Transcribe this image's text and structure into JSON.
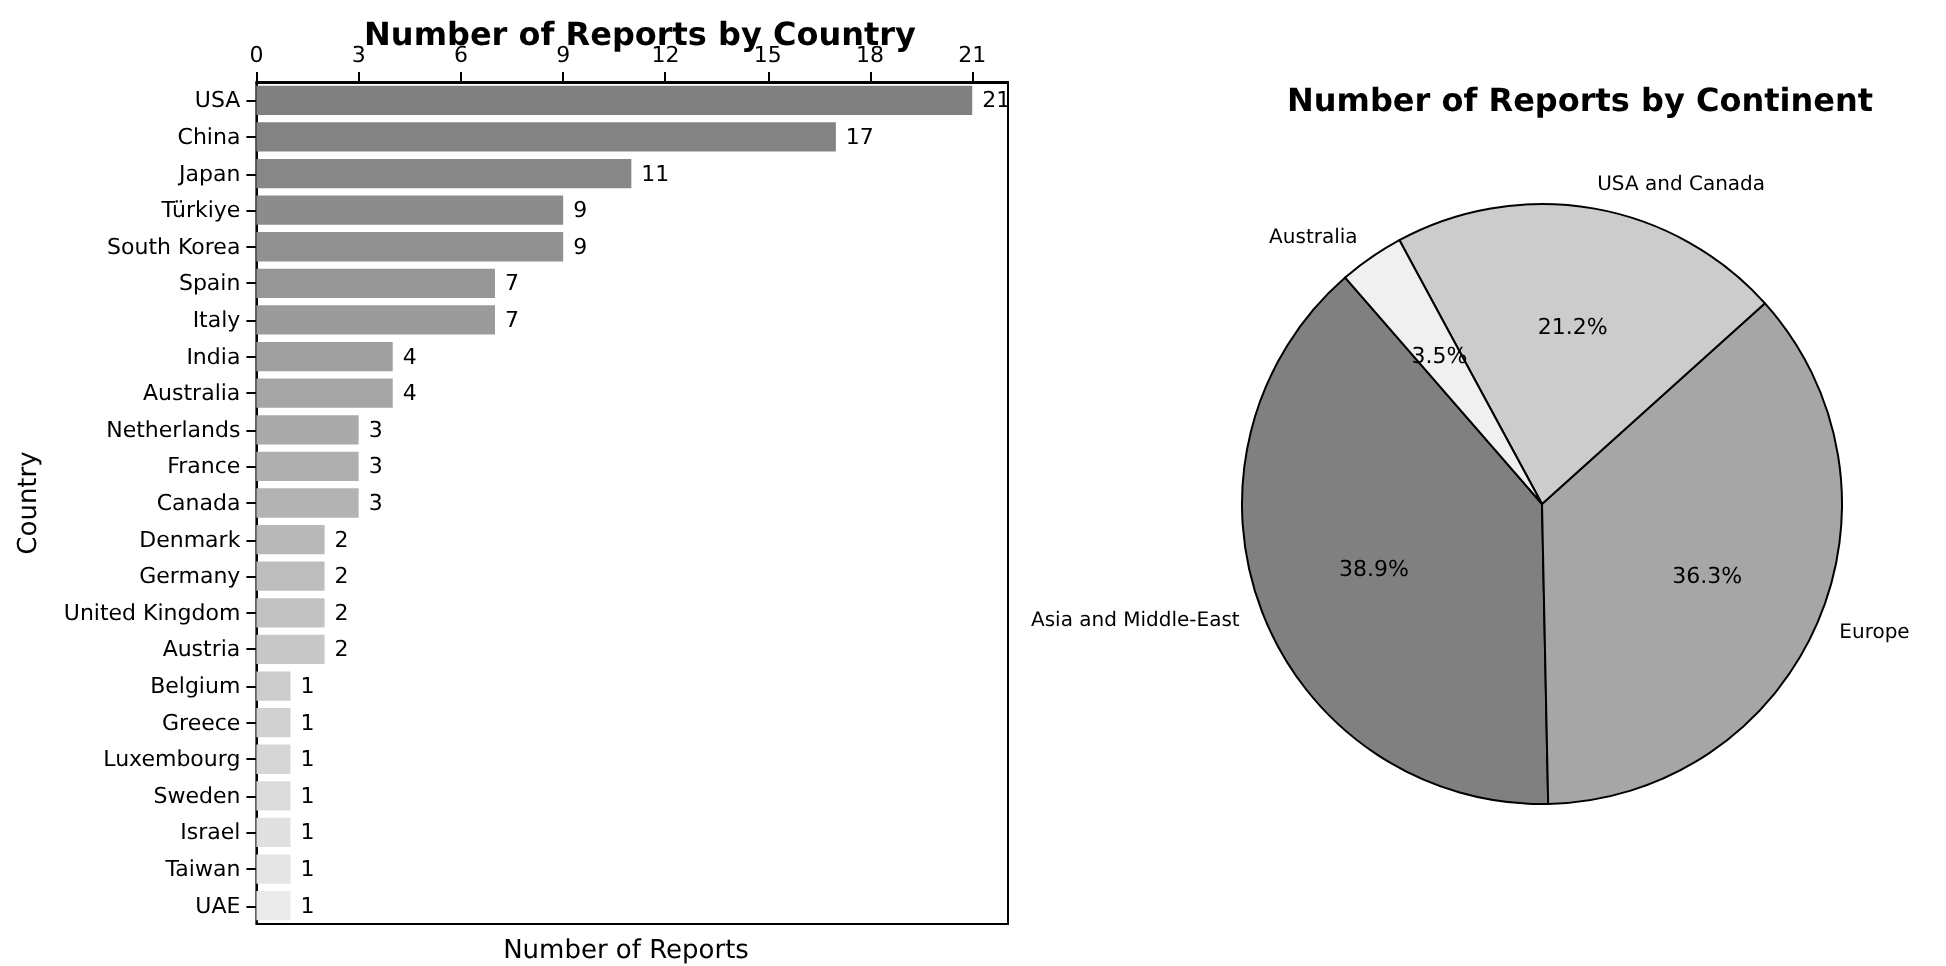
{
  "chart_data": [
    {
      "type": "bar",
      "orientation": "horizontal",
      "title": "Number of Reports by Country",
      "xlabel": "Number of Reports",
      "ylabel": "Country",
      "categories": [
        "USA",
        "China",
        "Japan",
        "Türkiye",
        "South Korea",
        "Spain",
        "Italy",
        "India",
        "Australia",
        "Netherlands",
        "France",
        "Canada",
        "Denmark",
        "Germany",
        "United Kingdom",
        "Austria",
        "Belgium",
        "Greece",
        "Luxembourg",
        "Sweden",
        "Israel",
        "Taiwan",
        "UAE"
      ],
      "values": [
        21,
        17,
        11,
        9,
        9,
        7,
        7,
        4,
        4,
        3,
        3,
        3,
        2,
        2,
        2,
        2,
        1,
        1,
        1,
        1,
        1,
        1,
        1
      ],
      "colors": [
        "#808080",
        "#838383",
        "#878787",
        "#8c8c8c",
        "#919191",
        "#969696",
        "#9b9b9b",
        "#a0a0a0",
        "#a5a5a5",
        "#aaaaaa",
        "#afafaf",
        "#b3b3b3",
        "#b8b8b8",
        "#bdbdbd",
        "#c2c2c2",
        "#c7c7c7",
        "#cccccc",
        "#d1d1d1",
        "#d6d6d6",
        "#dbdbdb",
        "#e0e0e0",
        "#e5e5e5",
        "#eaeaea"
      ],
      "xlim": [
        0,
        22.05
      ],
      "xticks": [
        0,
        3,
        6,
        9,
        12,
        15,
        18,
        21
      ],
      "data_labels": true
    },
    {
      "type": "pie",
      "title": "Number of Reports by Continent",
      "categories": [
        "Asia and Middle-East",
        "Europe",
        "USA and Canada",
        "Australia"
      ],
      "values": [
        38.9,
        36.3,
        21.2,
        3.5
      ],
      "value_labels": [
        "38.9%",
        "36.3%",
        "21.2%",
        "3.5%"
      ],
      "colors": [
        "#808080",
        "#a6a6a6",
        "#cccccc",
        "#f0f0f0"
      ]
    }
  ]
}
